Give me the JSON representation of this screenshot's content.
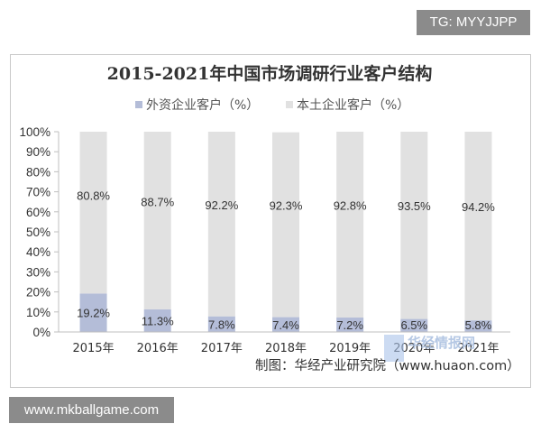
{
  "watermark_top": "TG: MYYJJPP",
  "watermark_bottom": "www.mkballgame.com",
  "logo_text": "华经情报网",
  "source": "制图：华经产业研究院（www.huaon.com）",
  "colors": {
    "foreign": "#b4bdd8",
    "domestic": "#e1e1e1",
    "grid": "#d9d9d9"
  },
  "chart_data": {
    "type": "bar",
    "stacked": true,
    "title": "2015-2021年中国市场调研行业客户结构",
    "categories": [
      "2015年",
      "2016年",
      "2017年",
      "2018年",
      "2019年",
      "2020年",
      "2021年"
    ],
    "series": [
      {
        "name": "外资企业客户（%）",
        "values": [
          19.2,
          11.3,
          7.8,
          7.4,
          7.2,
          6.5,
          5.8
        ],
        "labels": [
          "19.2%",
          "11.3%",
          "7.8%",
          "7.4%",
          "7.2%",
          "6.5%",
          "5.8%"
        ]
      },
      {
        "name": "本土企业客户（%）",
        "values": [
          80.8,
          88.7,
          92.2,
          92.3,
          92.8,
          93.5,
          94.2
        ],
        "labels": [
          "80.8%",
          "88.7%",
          "92.2%",
          "92.3%",
          "92.8%",
          "93.5%",
          "94.2%"
        ]
      }
    ],
    "ylim": [
      0,
      100
    ],
    "yticks": [
      "0%",
      "10%",
      "20%",
      "30%",
      "40%",
      "50%",
      "60%",
      "70%",
      "80%",
      "90%",
      "100%"
    ],
    "legend": "top",
    "grid": false
  }
}
